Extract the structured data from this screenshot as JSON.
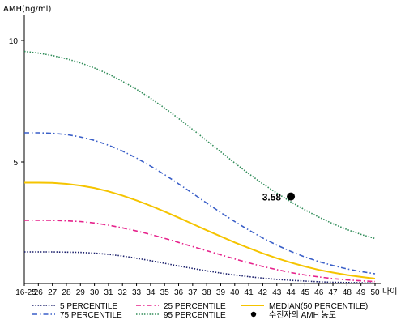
{
  "chart_data": {
    "type": "line",
    "ylabel": "AMH(ng/ml)",
    "xlabel": "나이",
    "ylim": [
      0,
      11
    ],
    "y_ticks": [
      10,
      5
    ],
    "categories": [
      "16-25",
      "26",
      "27",
      "28",
      "29",
      "30",
      "31",
      "32",
      "33",
      "34",
      "35",
      "36",
      "37",
      "38",
      "39",
      "40",
      "41",
      "42",
      "43",
      "44",
      "45",
      "46",
      "47",
      "48",
      "49",
      "50"
    ],
    "series": [
      {
        "name": "5 PERCENTILE",
        "color": "#1a1f6b",
        "style": "dotted",
        "values": [
          1.3,
          1.3,
          1.3,
          1.29,
          1.28,
          1.25,
          1.2,
          1.13,
          1.04,
          0.94,
          0.83,
          0.72,
          0.62,
          0.52,
          0.43,
          0.35,
          0.28,
          0.22,
          0.17,
          0.13,
          0.1,
          0.07,
          0.05,
          0.04,
          0.03,
          0.02
        ]
      },
      {
        "name": "25 PERCENTILE",
        "color": "#e6238c",
        "style": "dashdot",
        "values": [
          2.6,
          2.6,
          2.6,
          2.58,
          2.55,
          2.49,
          2.4,
          2.29,
          2.16,
          2.02,
          1.86,
          1.69,
          1.52,
          1.35,
          1.18,
          1.01,
          0.85,
          0.7,
          0.57,
          0.45,
          0.35,
          0.27,
          0.2,
          0.15,
          0.11,
          0.08
        ]
      },
      {
        "name": "MEDIAN(50 PERCENTILE)",
        "color": "#f5c400",
        "style": "solid",
        "values": [
          4.15,
          4.15,
          4.14,
          4.1,
          4.03,
          3.93,
          3.79,
          3.62,
          3.42,
          3.2,
          2.96,
          2.71,
          2.45,
          2.19,
          1.94,
          1.69,
          1.46,
          1.24,
          1.04,
          0.86,
          0.7,
          0.56,
          0.45,
          0.35,
          0.27,
          0.2
        ]
      },
      {
        "name": "75 PERCENTILE",
        "color": "#3a5fc8",
        "style": "dashdot",
        "values": [
          6.2,
          6.2,
          6.18,
          6.13,
          6.03,
          5.89,
          5.69,
          5.45,
          5.16,
          4.83,
          4.48,
          4.1,
          3.71,
          3.31,
          2.92,
          2.55,
          2.2,
          1.87,
          1.58,
          1.32,
          1.09,
          0.9,
          0.74,
          0.6,
          0.49,
          0.4
        ]
      },
      {
        "name": "95 PERCENTILE",
        "color": "#2e8b57",
        "style": "dotted",
        "values": [
          9.55,
          9.48,
          9.38,
          9.25,
          9.08,
          8.87,
          8.62,
          8.32,
          7.99,
          7.62,
          7.22,
          6.79,
          6.34,
          5.88,
          5.42,
          4.96,
          4.52,
          4.1,
          3.72,
          3.36,
          3.03,
          2.73,
          2.46,
          2.22,
          2.02,
          1.85
        ]
      }
    ],
    "highlight_point": {
      "legend": "수진자의 AMH 농도",
      "x": "44",
      "y": 3.58,
      "label": "3.58",
      "color": "#000000"
    },
    "legend_position": "bottom",
    "grid": false
  }
}
